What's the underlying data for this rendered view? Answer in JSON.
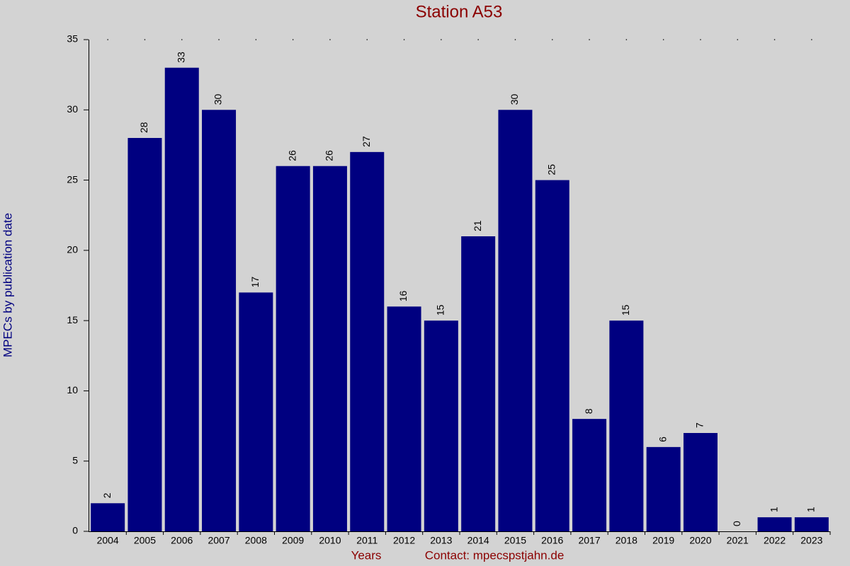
{
  "chart_data": {
    "type": "bar",
    "title": "Station A53",
    "x_label": "Years",
    "contact": "Contact: mpecspstjahn.de",
    "y_label": "MPECs by publication date",
    "categories": [
      "2004",
      "2005",
      "2006",
      "2007",
      "2008",
      "2009",
      "2010",
      "2011",
      "2012",
      "2013",
      "2014",
      "2015",
      "2016",
      "2017",
      "2018",
      "2019",
      "2020",
      "2021",
      "2022",
      "2023"
    ],
    "values": [
      2,
      28,
      33,
      30,
      17,
      26,
      26,
      27,
      16,
      15,
      21,
      30,
      25,
      8,
      15,
      6,
      7,
      0,
      1,
      1
    ],
    "color": "#000080",
    "ylim": [
      0,
      35
    ],
    "yticks": [
      0,
      5,
      10,
      15,
      20,
      25,
      30,
      35
    ]
  }
}
